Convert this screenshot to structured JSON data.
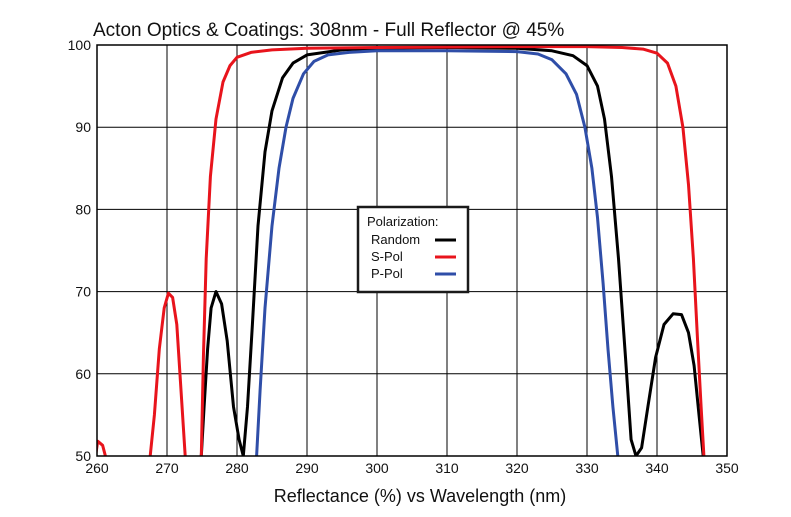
{
  "chart_data": {
    "type": "line",
    "title": "Acton Optics & Coatings:  308nm - Full Reflector @ 45%",
    "xlabel": "Reflectance (%)  vs  Wavelength (nm)",
    "ylabel": "",
    "xlim": [
      260,
      350
    ],
    "ylim": [
      50,
      100
    ],
    "x_ticks": [
      260,
      270,
      280,
      290,
      300,
      310,
      320,
      330,
      340,
      350
    ],
    "y_ticks": [
      50,
      60,
      70,
      80,
      90,
      100
    ],
    "grid": true,
    "legend": {
      "title": "Polarization:",
      "placement": "center"
    },
    "colors": {
      "random": "#000000",
      "s_pol": "#e8141c",
      "p_pol": "#2f4ea8"
    },
    "series": [
      {
        "name": "Random",
        "color": "#000000",
        "segments": [
          [
            [
              274.9,
              50
            ],
            [
              275.3,
              56
            ],
            [
              275.8,
              63
            ],
            [
              276.3,
              68
            ],
            [
              277.0,
              70
            ],
            [
              277.8,
              68.5
            ],
            [
              278.6,
              64
            ],
            [
              279.5,
              56
            ],
            [
              280.3,
              52
            ],
            [
              280.9,
              50
            ],
            [
              281.5,
              56
            ],
            [
              282.2,
              66
            ],
            [
              283.0,
              78
            ],
            [
              284.0,
              87
            ],
            [
              285.0,
              92
            ],
            [
              286.5,
              96
            ],
            [
              288.0,
              97.8
            ],
            [
              290.0,
              98.8
            ],
            [
              295.0,
              99.4
            ],
            [
              300.0,
              99.6
            ],
            [
              310.0,
              99.7
            ],
            [
              320.0,
              99.6
            ],
            [
              325.0,
              99.3
            ],
            [
              328.0,
              98.7
            ],
            [
              330.0,
              97.5
            ],
            [
              331.5,
              95
            ],
            [
              332.5,
              91
            ],
            [
              333.5,
              84
            ],
            [
              334.5,
              74
            ],
            [
              335.5,
              62
            ],
            [
              336.3,
              52
            ],
            [
              337.0,
              50
            ],
            [
              337.8,
              51
            ],
            [
              338.7,
              56
            ],
            [
              339.8,
              62
            ],
            [
              341.0,
              66
            ],
            [
              342.3,
              67.3
            ],
            [
              343.5,
              67.2
            ],
            [
              344.5,
              65
            ],
            [
              345.3,
              61
            ],
            [
              346.0,
              55
            ],
            [
              346.6,
              50
            ]
          ]
        ]
      },
      {
        "name": "S-Pol",
        "color": "#e8141c",
        "segments": [
          [
            [
              259.8,
              50
            ],
            [
              260.1,
              51.8
            ],
            [
              260.8,
              51.3
            ],
            [
              261.2,
              50
            ]
          ],
          [
            [
              267.6,
              50
            ],
            [
              268.2,
              55
            ],
            [
              268.9,
              63
            ],
            [
              269.6,
              68
            ],
            [
              270.2,
              69.8
            ],
            [
              270.8,
              69.3
            ],
            [
              271.4,
              66
            ],
            [
              272.0,
              58
            ],
            [
              272.6,
              50
            ]
          ],
          [
            [
              274.9,
              50
            ],
            [
              275.2,
              62
            ],
            [
              275.6,
              74
            ],
            [
              276.2,
              84
            ],
            [
              277.0,
              91
            ],
            [
              278.0,
              95.5
            ],
            [
              279.0,
              97.5
            ],
            [
              280.0,
              98.5
            ],
            [
              282.0,
              99.1
            ],
            [
              285.0,
              99.4
            ],
            [
              290.0,
              99.6
            ],
            [
              300.0,
              99.7
            ],
            [
              320.0,
              99.8
            ],
            [
              330.0,
              99.8
            ],
            [
              335.0,
              99.7
            ],
            [
              338.0,
              99.5
            ],
            [
              340.0,
              99.0
            ],
            [
              341.5,
              97.8
            ],
            [
              342.7,
              95
            ],
            [
              343.7,
              90
            ],
            [
              344.5,
              83
            ],
            [
              345.2,
              74
            ],
            [
              345.8,
              64
            ],
            [
              346.3,
              56
            ],
            [
              346.7,
              50
            ]
          ]
        ]
      },
      {
        "name": "P-Pol",
        "color": "#2f4ea8",
        "segments": [
          [
            [
              282.8,
              50
            ],
            [
              283.3,
              58
            ],
            [
              284.0,
              68
            ],
            [
              285.0,
              78
            ],
            [
              286.0,
              85
            ],
            [
              287.0,
              90
            ],
            [
              288.0,
              93.5
            ],
            [
              289.5,
              96.5
            ],
            [
              291.0,
              98
            ],
            [
              293.0,
              98.8
            ],
            [
              296.0,
              99.1
            ],
            [
              300.0,
              99.3
            ],
            [
              310.0,
              99.3
            ],
            [
              320.0,
              99.2
            ],
            [
              323.0,
              98.9
            ],
            [
              325.0,
              98.2
            ],
            [
              327.0,
              96.5
            ],
            [
              328.5,
              94
            ],
            [
              329.7,
              90
            ],
            [
              330.7,
              85
            ],
            [
              331.5,
              79
            ],
            [
              332.3,
              71
            ],
            [
              333.0,
              63
            ],
            [
              333.7,
              56
            ],
            [
              334.4,
              50
            ]
          ]
        ]
      }
    ]
  }
}
